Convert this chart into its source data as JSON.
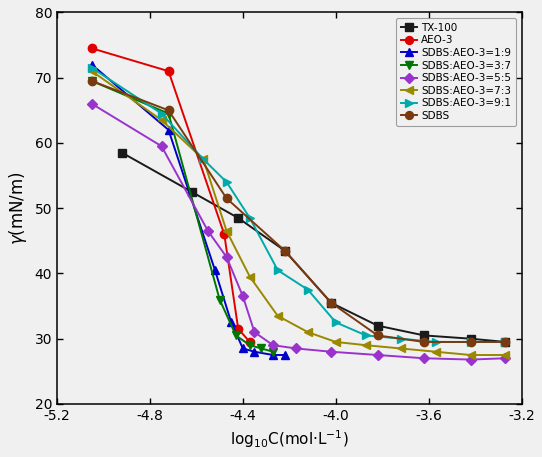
{
  "xlim": [
    -5.2,
    -3.2
  ],
  "ylim": [
    20,
    80
  ],
  "xticks": [
    -5.2,
    -4.8,
    -4.4,
    -4.0,
    -3.6,
    -3.2
  ],
  "yticks": [
    20,
    30,
    40,
    50,
    60,
    70,
    80
  ],
  "series": [
    {
      "label": "TX-100",
      "color": "#1a1a1a",
      "marker": "s",
      "markersize": 6,
      "linewidth": 1.4,
      "x": [
        -4.92,
        -4.62,
        -4.42,
        -4.22,
        -4.02,
        -3.82,
        -3.62,
        -3.42,
        -3.27
      ],
      "y": [
        58.5,
        52.5,
        48.5,
        43.5,
        35.5,
        32.0,
        30.5,
        30.0,
        29.5
      ]
    },
    {
      "label": "AEO-3",
      "color": "#e00000",
      "marker": "o",
      "markersize": 6,
      "linewidth": 1.4,
      "x": [
        -5.05,
        -4.72,
        -4.48,
        -4.42,
        -4.37
      ],
      "y": [
        74.5,
        71.0,
        46.0,
        31.5,
        29.5
      ]
    },
    {
      "label": "SDBS:AEO-3=1:9",
      "color": "#0000cc",
      "marker": "^",
      "markersize": 6,
      "linewidth": 1.4,
      "x": [
        -5.05,
        -4.72,
        -4.52,
        -4.45,
        -4.4,
        -4.35,
        -4.27,
        -4.22
      ],
      "y": [
        72.0,
        62.0,
        40.5,
        32.5,
        28.5,
        28.0,
        27.5,
        27.5
      ]
    },
    {
      "label": "SDBS:AEO-3=3:7",
      "color": "#007700",
      "marker": "v",
      "markersize": 6,
      "linewidth": 1.4,
      "x": [
        -5.05,
        -4.72,
        -4.5,
        -4.43,
        -4.37,
        -4.32,
        -4.27
      ],
      "y": [
        69.5,
        64.5,
        36.0,
        30.5,
        29.0,
        28.5,
        28.0
      ]
    },
    {
      "label": "SDBS:AEO-3=5:5",
      "color": "#9933cc",
      "marker": "D",
      "markersize": 5,
      "linewidth": 1.4,
      "x": [
        -5.05,
        -4.75,
        -4.55,
        -4.47,
        -4.4,
        -4.35,
        -4.27,
        -4.17,
        -4.02,
        -3.82,
        -3.62,
        -3.42,
        -3.27
      ],
      "y": [
        66.0,
        59.5,
        46.5,
        42.5,
        36.5,
        31.0,
        29.0,
        28.5,
        28.0,
        27.5,
        27.0,
        26.8,
        27.0
      ]
    },
    {
      "label": "SDBS:AEO-3=7:3",
      "color": "#998800",
      "marker": "<",
      "markersize": 6,
      "linewidth": 1.4,
      "x": [
        -5.05,
        -4.75,
        -4.57,
        -4.47,
        -4.37,
        -4.25,
        -4.12,
        -4.0,
        -3.87,
        -3.72,
        -3.57,
        -3.42,
        -3.27
      ],
      "y": [
        71.0,
        63.5,
        57.5,
        46.5,
        39.5,
        33.5,
        31.0,
        29.5,
        29.0,
        28.5,
        28.0,
        27.5,
        27.5
      ]
    },
    {
      "label": "SDBS:AEO-3=9:1",
      "color": "#00aaaa",
      "marker": ">",
      "markersize": 6,
      "linewidth": 1.4,
      "x": [
        -5.05,
        -4.75,
        -4.57,
        -4.47,
        -4.37,
        -4.25,
        -4.12,
        -4.0,
        -3.87,
        -3.72,
        -3.57,
        -3.42,
        -3.27
      ],
      "y": [
        71.5,
        64.5,
        57.5,
        54.0,
        48.5,
        40.5,
        37.5,
        32.5,
        30.5,
        30.0,
        29.5,
        29.5,
        29.5
      ]
    },
    {
      "label": "SDBS",
      "color": "#7a3a10",
      "marker": "o",
      "markersize": 6,
      "linewidth": 1.4,
      "x": [
        -5.05,
        -4.72,
        -4.47,
        -4.22,
        -4.02,
        -3.82,
        -3.62,
        -3.42,
        -3.27
      ],
      "y": [
        69.5,
        65.0,
        51.5,
        43.5,
        35.5,
        30.5,
        29.5,
        29.5,
        29.5
      ]
    }
  ]
}
